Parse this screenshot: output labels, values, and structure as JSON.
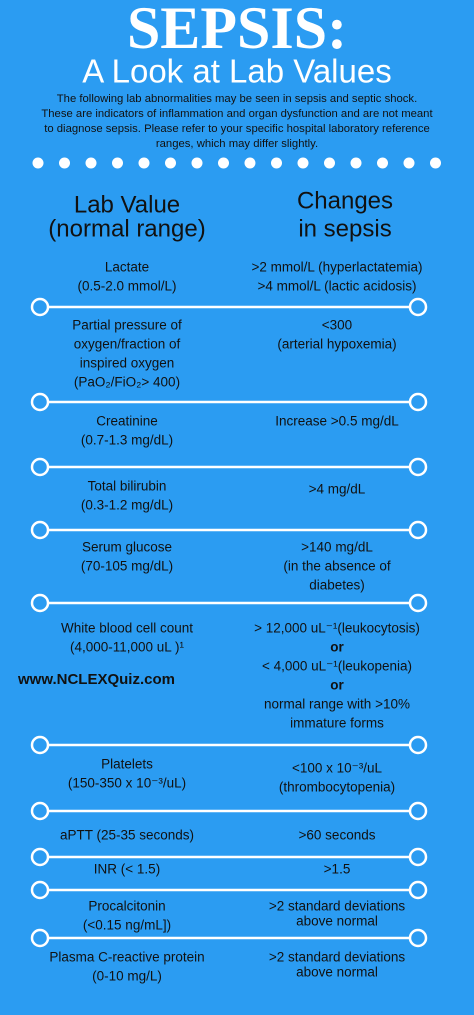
{
  "header": {
    "title": "SEPSIS:",
    "subtitle": "A Look at Lab Values",
    "intro": [
      "The following lab abnormalities may be seen in sepsis and septic shock.",
      "These are indicators of inflammation and organ dysfunction and are not meant",
      "to diagnose sepsis. Please refer to your specific hospital laboratory reference",
      "ranges, which may differ slightly."
    ]
  },
  "columns": {
    "left": [
      "Lab Value",
      "(normal range)"
    ],
    "right": [
      "Changes",
      "in sepsis"
    ]
  },
  "rows": [
    {
      "left": [
        "Lactate",
        "(0.5-2.0 mmol/L)"
      ],
      "right": [
        ">2 mmol/L (hyperlactatemia)",
        ">4 mmol/L (lactic acidosis)"
      ]
    },
    {
      "left": [
        "Partial pressure of",
        "oxygen/fraction of",
        "inspired oxygen",
        "(PaO₂/FiO₂> 400)"
      ],
      "right": [
        "<300",
        "(arterial hypoxemia)"
      ]
    },
    {
      "left": [
        "Creatinine",
        "(0.7-1.3 mg/dL)"
      ],
      "right": [
        "Increase >0.5 mg/dL"
      ]
    },
    {
      "left": [
        "Total bilirubin",
        "(0.3-1.2 mg/dL)"
      ],
      "right": [
        ">4 mg/dL"
      ]
    },
    {
      "left": [
        "Serum glucose",
        "(70-105 mg/dL)"
      ],
      "right": [
        ">140 mg/dL",
        "(in the absence of",
        "diabetes)"
      ]
    },
    {
      "left": [
        "White blood cell count",
        "(4,000-11,000 uL )¹"
      ],
      "right": [
        "> 12,000 uL⁻¹(leukocytosis)",
        "or",
        "< 4,000 uL⁻¹(leukopenia)",
        "or",
        "normal range with >10%",
        "immature forms"
      ]
    },
    {
      "left": [
        "Platelets",
        "(150-350 x 10⁻³/uL)"
      ],
      "right": [
        "<100 x 10⁻³/uL",
        "(thrombocytopenia)"
      ]
    },
    {
      "left": [
        "aPTT (25-35 seconds)"
      ],
      "right": [
        ">60 seconds"
      ]
    },
    {
      "left": [
        "INR (< 1.5)"
      ],
      "right": [
        ">1.5"
      ]
    },
    {
      "left": [
        "Procalcitonin",
        "(<0.15 ng/mL])"
      ],
      "right": [
        ">2 standard deviations",
        "above normal"
      ]
    },
    {
      "left": [
        "Plasma C-reactive protein",
        "(0-10 mg/L)"
      ],
      "right": [
        ">2 standard deviations",
        "above normal"
      ]
    }
  ],
  "watermark": "www.NCLEXQuiz.com"
}
